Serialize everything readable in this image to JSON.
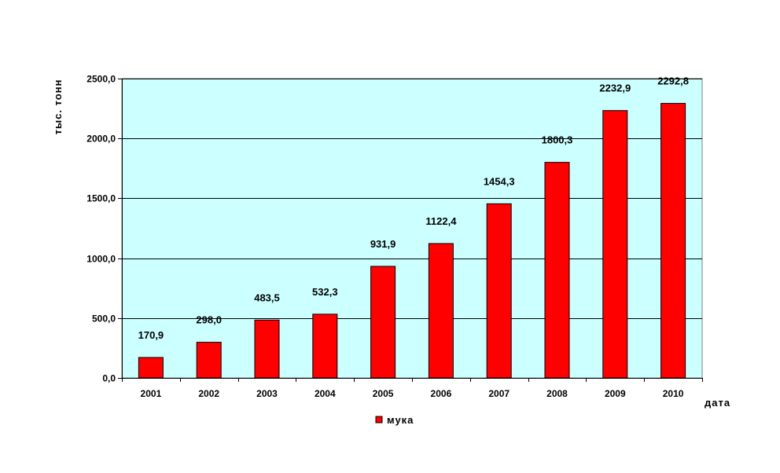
{
  "chart_data": {
    "type": "bar",
    "categories": [
      "2001",
      "2002",
      "2003",
      "2004",
      "2005",
      "2006",
      "2007",
      "2008",
      "2009",
      "2010"
    ],
    "series": [
      {
        "name": "мука",
        "values": [
          170.9,
          298.0,
          483.5,
          532.3,
          931.9,
          1122.4,
          1454.3,
          1800.3,
          2232.9,
          2292.8
        ],
        "labels": [
          "170,9",
          "298,0",
          "483,5",
          "532,3",
          "931,9",
          "1122,4",
          "1454,3",
          "1800,3",
          "2232,9",
          "2292,8"
        ]
      }
    ],
    "ylabel": "тыс. тонн",
    "xlabel": "дата",
    "ylim": [
      0,
      2500
    ],
    "yticks": [
      0,
      500,
      1000,
      1500,
      2000,
      2500
    ],
    "ytick_labels": [
      "0,0",
      "500,0",
      "1000,0",
      "1500,0",
      "2000,0",
      "2500,0"
    ],
    "grid": true,
    "legend_position": "bottom",
    "colors": {
      "bar": "#ff0000",
      "bar_stroke": "#000000",
      "plot_background": "#ccffff",
      "grid": "#000000"
    }
  }
}
